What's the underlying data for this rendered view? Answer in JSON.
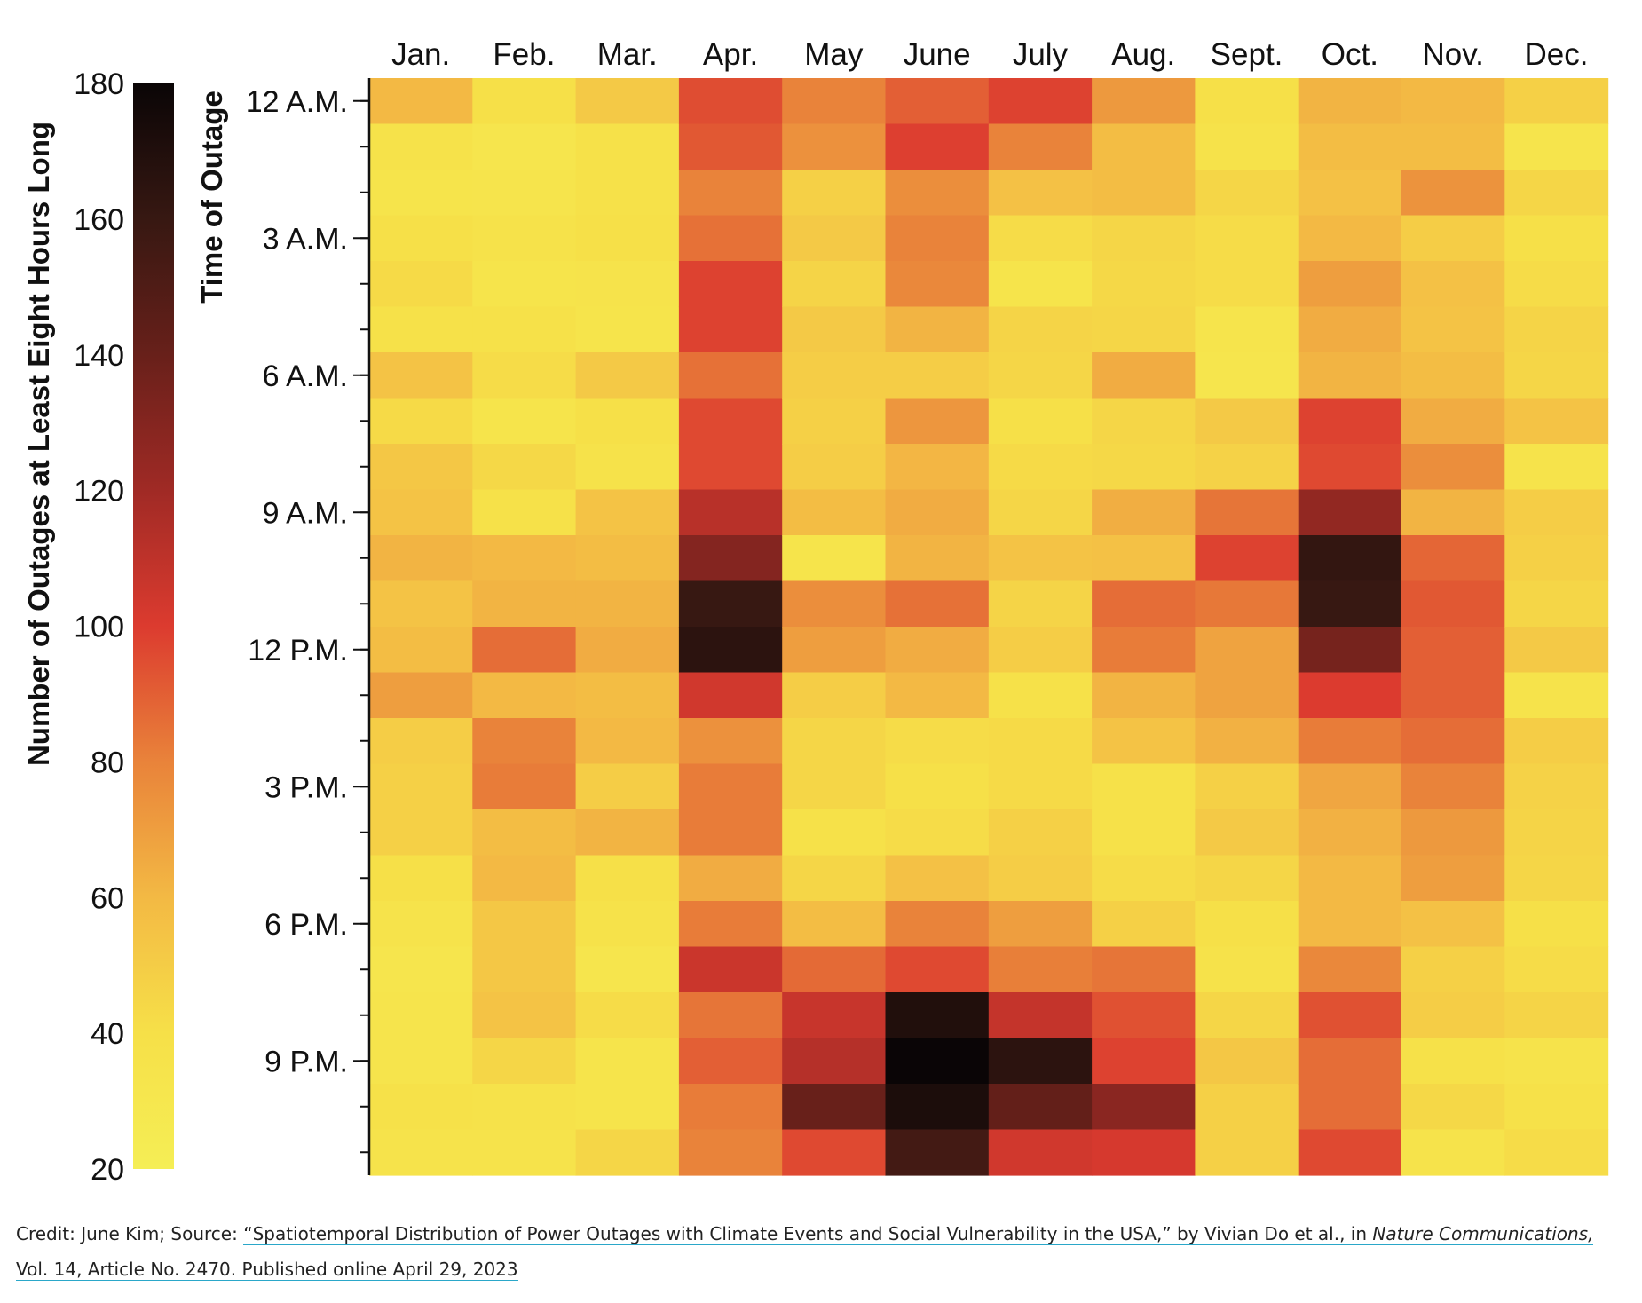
{
  "chart_data": {
    "type": "heatmap",
    "x_categories": [
      "Jan.",
      "Feb.",
      "Mar.",
      "Apr.",
      "May",
      "June",
      "July",
      "Aug.",
      "Sept.",
      "Oct.",
      "Nov.",
      "Dec."
    ],
    "y_hours": [
      0,
      1,
      2,
      3,
      4,
      5,
      6,
      7,
      8,
      9,
      10,
      11,
      12,
      13,
      14,
      15,
      16,
      17,
      18,
      19,
      20,
      21,
      22,
      23
    ],
    "y_tick_labels": [
      {
        "hour": 0,
        "label": "12 A.M."
      },
      {
        "hour": 3,
        "label": "3 A.M."
      },
      {
        "hour": 6,
        "label": "6 A.M."
      },
      {
        "hour": 9,
        "label": "9 A.M."
      },
      {
        "hour": 12,
        "label": "12 P.M."
      },
      {
        "hour": 15,
        "label": "3 P.M."
      },
      {
        "hour": 18,
        "label": "6 P.M."
      },
      {
        "hour": 21,
        "label": "9 P.M."
      }
    ],
    "ylabel": "Time of Outage",
    "colorbar_label": "Number of Outages at Least Eight Hours Long",
    "colorbar_ticks": [
      20,
      40,
      60,
      80,
      100,
      120,
      140,
      160,
      180
    ],
    "color_range": [
      20,
      180
    ],
    "colormap": "hot (yellow → orange → red → black)",
    "values_by_month": [
      [
        60,
        37,
        35,
        40,
        43,
        38,
        55,
        43,
        53,
        55,
        62,
        55,
        58,
        70,
        50,
        48,
        48,
        40,
        36,
        33,
        34,
        34,
        38,
        36
      ],
      [
        40,
        33,
        34,
        37,
        35,
        39,
        42,
        35,
        44,
        38,
        60,
        62,
        86,
        60,
        80,
        82,
        58,
        60,
        53,
        53,
        55,
        45,
        37,
        36
      ],
      [
        52,
        38,
        38,
        40,
        36,
        35,
        52,
        40,
        37,
        55,
        58,
        62,
        65,
        58,
        60,
        50,
        62,
        40,
        37,
        33,
        42,
        35,
        35,
        45
      ],
      [
        95,
        92,
        80,
        85,
        98,
        98,
        85,
        96,
        96,
        112,
        130,
        160,
        165,
        104,
        75,
        82,
        82,
        65,
        82,
        106,
        84,
        90,
        82,
        80
      ],
      [
        80,
        75,
        48,
        52,
        46,
        52,
        50,
        48,
        50,
        58,
        35,
        76,
        70,
        50,
        45,
        45,
        38,
        45,
        58,
        87,
        107,
        113,
        140,
        96
      ],
      [
        90,
        99,
        76,
        80,
        78,
        62,
        50,
        73,
        61,
        65,
        62,
        85,
        65,
        60,
        42,
        40,
        42,
        56,
        80,
        96,
        170,
        180,
        172,
        155
      ],
      [
        98,
        80,
        56,
        42,
        35,
        46,
        45,
        40,
        43,
        45,
        55,
        46,
        50,
        38,
        43,
        43,
        48,
        50,
        70,
        81,
        108,
        165,
        142,
        104
      ],
      [
        72,
        58,
        58,
        45,
        44,
        45,
        65,
        45,
        44,
        64,
        56,
        86,
        82,
        62,
        55,
        38,
        38,
        42,
        48,
        84,
        94,
        98,
        128,
        102
      ],
      [
        40,
        37,
        45,
        42,
        42,
        34,
        33,
        52,
        47,
        84,
        98,
        83,
        68,
        68,
        63,
        48,
        52,
        45,
        40,
        37,
        45,
        53,
        48,
        48
      ],
      [
        62,
        58,
        56,
        60,
        70,
        65,
        62,
        98,
        96,
        125,
        162,
        160,
        135,
        100,
        82,
        67,
        63,
        60,
        60,
        78,
        94,
        86,
        86,
        96
      ],
      [
        60,
        58,
        74,
        50,
        56,
        55,
        58,
        65,
        76,
        62,
        88,
        92,
        90,
        90,
        86,
        80,
        72,
        70,
        56,
        48,
        50,
        38,
        44,
        36
      ],
      [
        48,
        34,
        45,
        40,
        42,
        46,
        45,
        55,
        36,
        50,
        48,
        45,
        52,
        36,
        50,
        47,
        46,
        45,
        40,
        42,
        46,
        36,
        38,
        42
      ]
    ]
  },
  "credit": {
    "prefix": "Credit: June Kim; Source: ",
    "link_text": "“Spatiotemporal Distribution of Power Outages with Climate Events and Social Vulnerability in the USA,” by Vivian Do et al., in ",
    "journal": "Nature Communications,",
    "suffix": " Vol. 14, Article No. 2470. Published online April 29, 2023"
  }
}
